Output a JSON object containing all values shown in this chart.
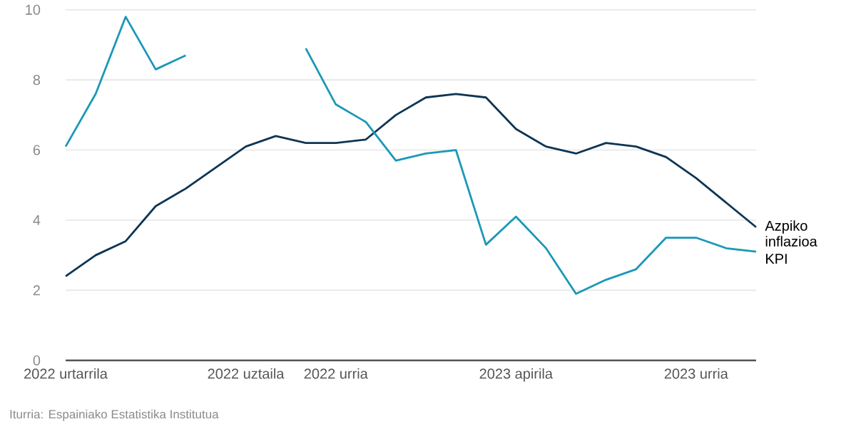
{
  "chart_data": {
    "type": "line",
    "categories": [
      "2022 urtarrila",
      null,
      null,
      null,
      null,
      null,
      "2022 uztaila",
      null,
      null,
      "2022 urria",
      null,
      null,
      null,
      null,
      null,
      "2023 apirila",
      null,
      null,
      null,
      null,
      null,
      "2023 urria",
      null,
      null
    ],
    "series": [
      {
        "name": "Azpiko inflazioa",
        "color": "#0d3554",
        "values": [
          2.4,
          3.0,
          3.4,
          4.4,
          4.9,
          5.5,
          6.1,
          6.4,
          6.2,
          6.2,
          6.3,
          7.0,
          7.5,
          7.6,
          7.5,
          6.6,
          6.1,
          5.9,
          6.2,
          6.1,
          5.8,
          5.2,
          4.5,
          3.8
        ]
      },
      {
        "name": "KPI",
        "color": "#1b98b8",
        "values": [
          6.1,
          7.6,
          9.8,
          8.3,
          8.7,
          null,
          null,
          null,
          8.9,
          7.3,
          6.8,
          5.7,
          5.9,
          6.0,
          3.3,
          4.1,
          3.2,
          1.9,
          2.3,
          2.6,
          3.5,
          3.5,
          3.2,
          3.1
        ]
      }
    ],
    "ylim": [
      0,
      10
    ],
    "yticks": [
      0,
      2,
      4,
      6,
      8,
      10
    ],
    "grid": "y",
    "line_style": "solid",
    "marker": "none",
    "annotations": [
      "Iturria: Espainiako Estatistika Institutua"
    ]
  }
}
